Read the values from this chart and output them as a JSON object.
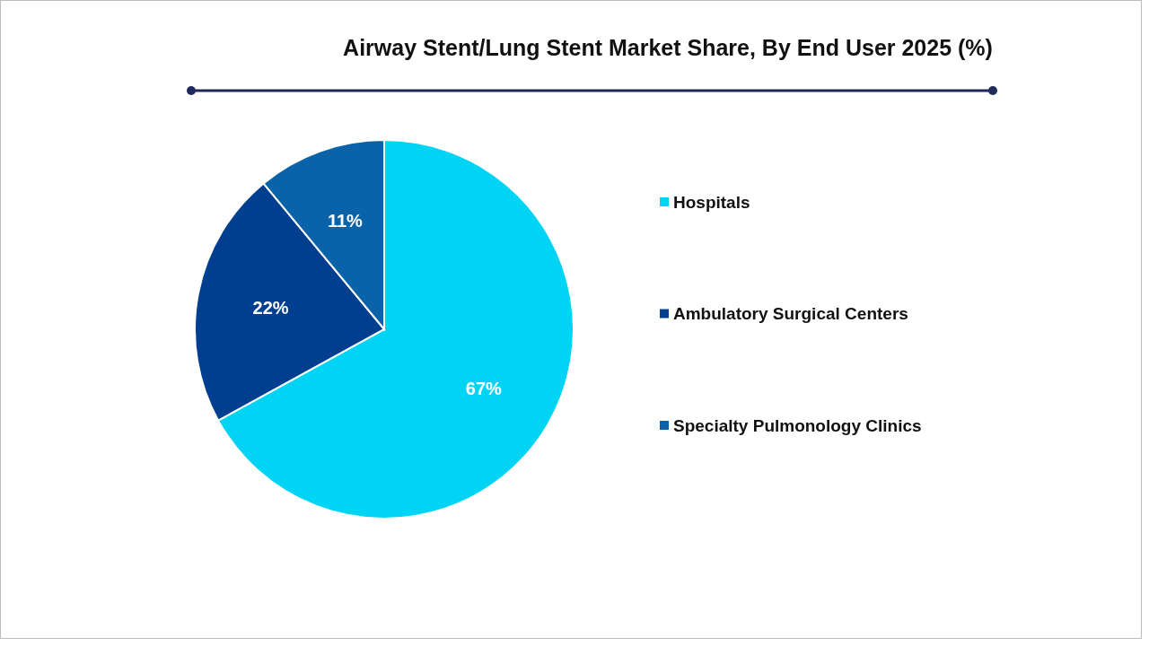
{
  "chart_data": {
    "type": "pie",
    "title": "Airway Stent/Lung Stent Market Share, By End User 2025 (%)",
    "categories": [
      "Hospitals",
      "Ambulatory Surgical Centers",
      "Specialty Pulmonology Clinics"
    ],
    "values": [
      67,
      22,
      11
    ],
    "value_labels": [
      "67%",
      "22%",
      "11%"
    ],
    "colors": [
      "#00d4f5",
      "#003f8f",
      "#0a63a8"
    ],
    "legend": "right"
  }
}
